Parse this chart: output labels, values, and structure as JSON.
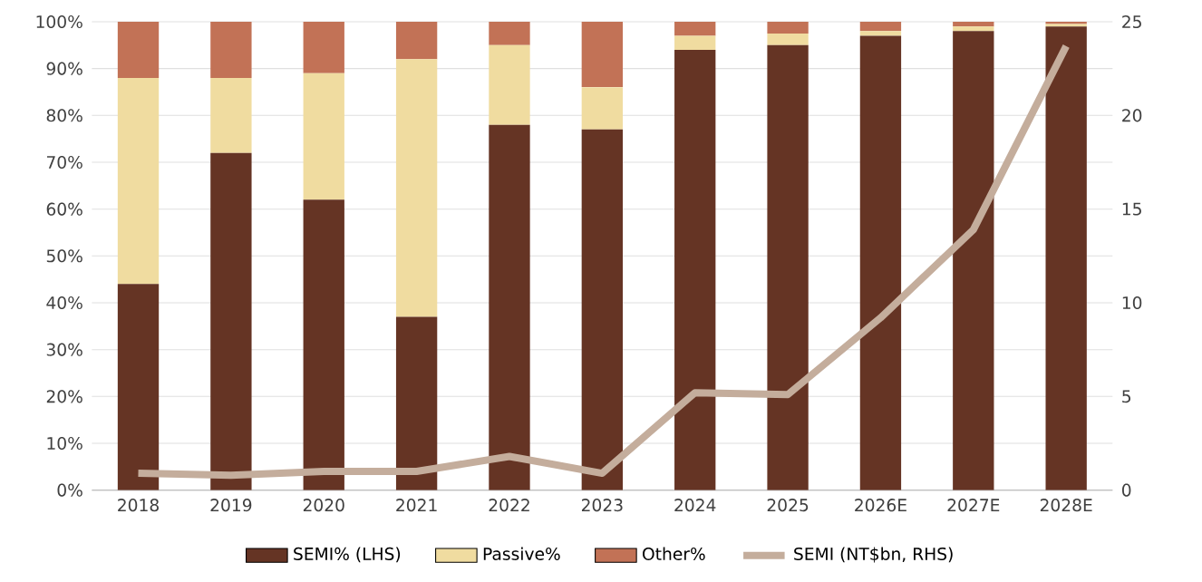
{
  "chart_data": {
    "type": "bar",
    "stacked": true,
    "grid": "y",
    "legend": "bottom",
    "categories": [
      "2018",
      "2019",
      "2020",
      "2021",
      "2022",
      "2023",
      "2024",
      "2025",
      "2026E",
      "2027E",
      "2028E"
    ],
    "series": [
      {
        "name": "SEMI% (LHS)",
        "color": "#653424",
        "values": [
          44,
          72,
          62,
          37,
          78,
          77,
          94,
          95,
          97,
          98,
          99
        ]
      },
      {
        "name": "Passive%",
        "color": "#f0dca0",
        "values": [
          44,
          16,
          27,
          55,
          17,
          9,
          3,
          2.5,
          1,
          1,
          0.5
        ]
      },
      {
        "name": "Other%",
        "color": "#c27256",
        "values": [
          12,
          12,
          11,
          8,
          5,
          14,
          3,
          2.5,
          2,
          1,
          0.5
        ]
      },
      {
        "name": "SEMI (NT$bn, RHS)",
        "type": "line",
        "axis": "y2",
        "color": "#c4ad9c",
        "marker": "none",
        "line_style": "solid",
        "values": [
          0.9,
          0.8,
          1.0,
          1.0,
          1.8,
          0.9,
          5.2,
          5.1,
          9.2,
          13.9,
          23.7
        ]
      }
    ],
    "ylim": [
      0,
      100
    ],
    "yticks": [
      {
        "value": 0,
        "label": "0%"
      },
      {
        "value": 10,
        "label": "10%"
      },
      {
        "value": 20,
        "label": "20%"
      },
      {
        "value": 30,
        "label": "30%"
      },
      {
        "value": 40,
        "label": "40%"
      },
      {
        "value": 50,
        "label": "50%"
      },
      {
        "value": 60,
        "label": "60%"
      },
      {
        "value": 70,
        "label": "70%"
      },
      {
        "value": 80,
        "label": "80%"
      },
      {
        "value": 90,
        "label": "90%"
      },
      {
        "value": 100,
        "label": "100%"
      }
    ],
    "y2lim": [
      0,
      25
    ],
    "y2ticks": [
      0,
      5,
      10,
      15,
      20,
      25
    ]
  }
}
